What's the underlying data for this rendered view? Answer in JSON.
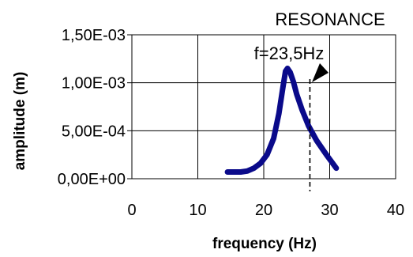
{
  "chart_data": {
    "type": "line",
    "title": "",
    "xlabel": "frequency (Hz)",
    "ylabel": "amplitude (m)",
    "xlim": [
      0,
      40
    ],
    "ylim": [
      0,
      0.0015
    ],
    "x_ticks": [
      0,
      10,
      20,
      30,
      40
    ],
    "x_tick_labels": [
      "0",
      "10",
      "20",
      "30",
      "40"
    ],
    "y_ticks": [
      0,
      0.0005,
      0.001,
      0.0015
    ],
    "y_tick_labels": [
      "0,00E+00",
      "5,00E-04",
      "1,00E-03",
      "1,50E-03"
    ],
    "grid": true,
    "series": [
      {
        "color": "#0a0a8a",
        "x": [
          14.5,
          15.5,
          16.5,
          17.5,
          18.5,
          19.5,
          20.5,
          21.5,
          22.3,
          22.9,
          23.3,
          23.6,
          24.0,
          24.5,
          25.0,
          25.8,
          26.8,
          28.0,
          29.5,
          31.0
        ],
        "y": [
          7e-05,
          7e-05,
          7e-05,
          8e-05,
          0.00011,
          0.00016,
          0.00025,
          0.00042,
          0.00068,
          0.00095,
          0.00112,
          0.00115,
          0.00111,
          0.00101,
          0.00088,
          0.00072,
          0.00055,
          0.0004,
          0.00025,
          0.00011
        ]
      }
    ],
    "annotations": [
      {
        "text": "RESONANCE"
      },
      {
        "text": "f=23,5Hz"
      }
    ],
    "vline_x": 27
  }
}
